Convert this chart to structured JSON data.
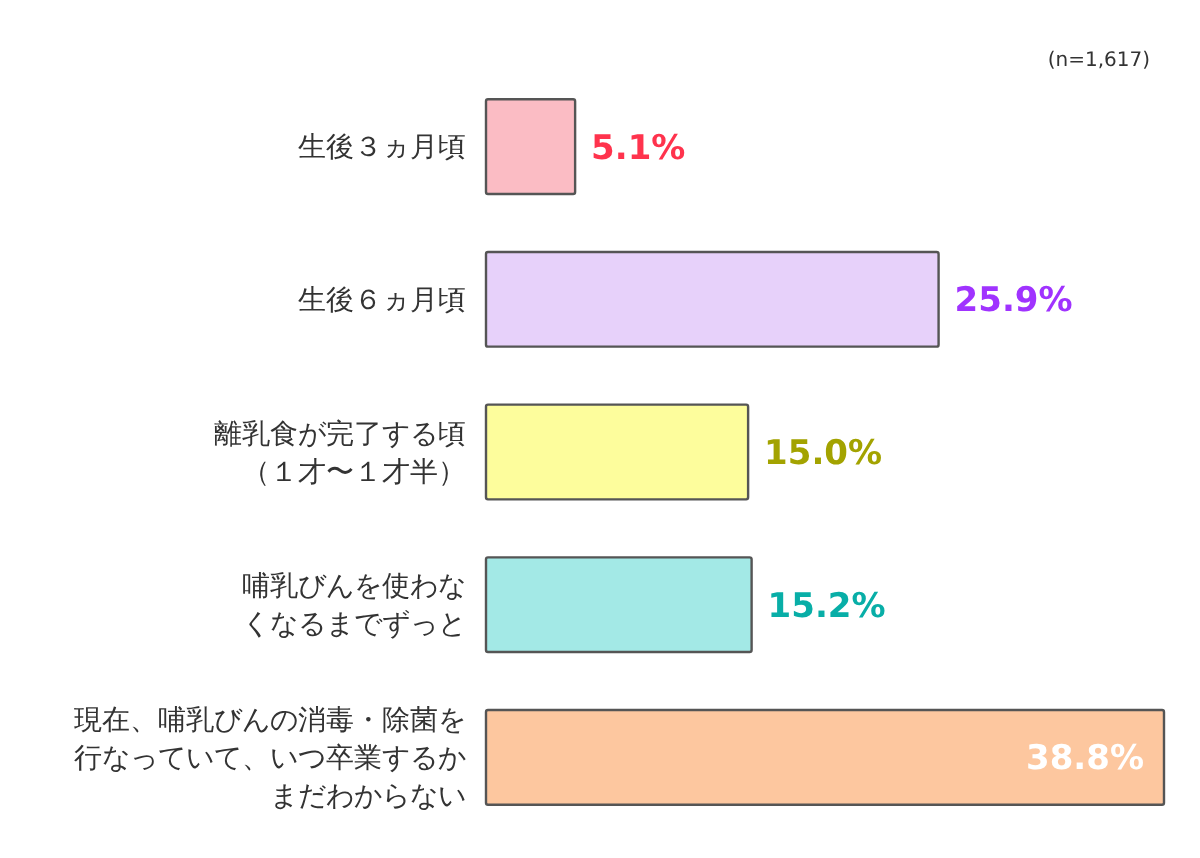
{
  "chart_data": {
    "type": "bar",
    "orientation": "horizontal",
    "categories": [
      "生後３ヵ月頃",
      "生後６ヵ月頃",
      "離乳食が完了する頃（１才〜１才半）",
      "哺乳びんを使わなくなるまでずっと",
      "現在、哺乳びんの消毒・除菌を行なっていて、いつ卒業するかまだわからない"
    ],
    "values": [
      5.1,
      25.9,
      15.0,
      15.2,
      38.8
    ],
    "colors": [
      "#fbbcc4",
      "#e7d1fa",
      "#fdfd9c",
      "#a3e9e6",
      "#fdc79f"
    ],
    "value_labels": [
      "5.1%",
      "25.9%",
      "15.0%",
      "15.2%",
      "38.8%"
    ],
    "annotations": [
      "(n=1,617)"
    ]
  }
}
